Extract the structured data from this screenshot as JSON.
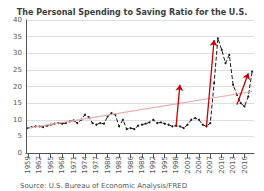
{
  "chart_data": {
    "type": "line",
    "title": "The Personal Spending to Saving Ratio for the U.S.",
    "annotations": [
      "Source: U.S. Bureau of Economic Analysis/FRED"
    ],
    "categories": [
      "1959",
      null,
      null,
      "1962",
      null,
      null,
      "1965",
      null,
      null,
      "1968",
      null,
      null,
      "1971",
      null,
      null,
      "1974",
      null,
      null,
      "1977",
      null,
      null,
      "1980",
      null,
      null,
      "1983",
      null,
      null,
      "1986",
      null,
      null,
      "1989",
      null,
      null,
      "1992",
      null,
      null,
      "1995",
      null,
      null,
      "1998",
      null,
      null,
      "2001",
      null,
      null,
      "2004",
      null,
      null,
      "2007",
      null,
      null,
      "2010",
      null,
      null,
      "2013",
      null,
      null,
      "2016",
      null,
      null
    ],
    "series": [
      {
        "color": "#1a1a1a",
        "line_style": "dashed",
        "marker": "dot",
        "values": [
          7.5,
          7.8,
          8.0,
          8.0,
          7.8,
          8.2,
          8.5,
          8.8,
          9.0,
          8.8,
          9.0,
          9.5,
          9.8,
          9.0,
          10.0,
          11.5,
          10.8,
          9.0,
          8.5,
          9.0,
          8.8,
          11.0,
          12.0,
          11.5,
          8.0,
          10.0,
          7.2,
          7.5,
          7.2,
          8.2,
          8.5,
          8.8,
          9.2,
          10.0,
          9.0,
          9.2,
          8.8,
          8.5,
          8.0,
          8.2,
          8.0,
          7.5,
          8.5,
          10.0,
          10.5,
          10.0,
          8.5,
          8.0,
          9.0,
          21.0,
          34.5,
          31.0,
          27.0,
          29.5,
          20.5,
          17.5,
          15.0,
          14.0,
          17.0,
          24.5
        ]
      }
    ],
    "trend_line": {
      "start": 7.5,
      "end": 18.5,
      "color": "#e8aaaa"
    },
    "arrows": {
      "color": "#cc0000",
      "items": [
        {
          "x1": 39,
          "y1": 8.0,
          "x2": 40,
          "y2": 20.5
        },
        {
          "x1": 47,
          "y1": 8.0,
          "x2": 49,
          "y2": 34.0
        },
        {
          "x1": 55,
          "y1": 14.5,
          "x2": 58,
          "y2": 24.0
        }
      ]
    },
    "ylim": [
      0,
      40
    ],
    "yticks": [
      0,
      5,
      10,
      15,
      20,
      25,
      30,
      35,
      40
    ],
    "grid": true
  }
}
